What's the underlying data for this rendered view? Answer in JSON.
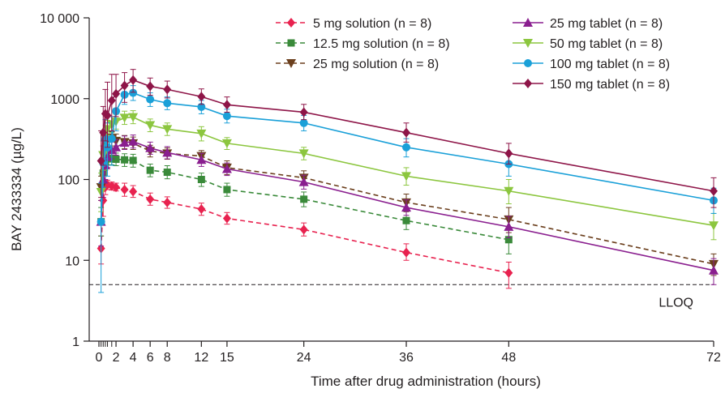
{
  "chart_data": {
    "type": "line",
    "xlabel": "Time after drug administration (hours)",
    "ylabel": "BAY 2433334 (µg/L)",
    "yscale": "log",
    "ylim": [
      1,
      10000
    ],
    "xlim": [
      0,
      72
    ],
    "x_ticks": [
      0,
      2,
      4,
      6,
      8,
      12,
      15,
      24,
      36,
      48,
      72
    ],
    "x_minor_ticks": [
      0.25,
      0.5,
      0.75,
      1,
      1.5
    ],
    "y_ticks": [
      {
        "value": 1,
        "label": "1"
      },
      {
        "value": 10,
        "label": "10"
      },
      {
        "value": 100,
        "label": "100"
      },
      {
        "value": 1000,
        "label": "1000"
      },
      {
        "value": 10000,
        "label": "10 000"
      }
    ],
    "reference_line": {
      "value": 5,
      "label": "LLOQ",
      "style": "dashed"
    },
    "legend_position": "top-right",
    "series": [
      {
        "name": "5 mg solution (n = 8)",
        "color": "#e8224f",
        "marker": "diamond",
        "dashed": true,
        "points": [
          {
            "x": 0.25,
            "y": 14,
            "lo": 9,
            "hi": 20
          },
          {
            "x": 0.5,
            "y": 55,
            "lo": 35,
            "hi": 75
          },
          {
            "x": 0.75,
            "y": 80,
            "lo": 65,
            "hi": 95
          },
          {
            "x": 1,
            "y": 86,
            "lo": 75,
            "hi": 98
          },
          {
            "x": 1.5,
            "y": 83,
            "lo": 74,
            "hi": 93
          },
          {
            "x": 2,
            "y": 80,
            "lo": 72,
            "hi": 90
          },
          {
            "x": 3,
            "y": 75,
            "lo": 62,
            "hi": 90
          },
          {
            "x": 4,
            "y": 71,
            "lo": 60,
            "hi": 84
          },
          {
            "x": 6,
            "y": 57,
            "lo": 48,
            "hi": 68
          },
          {
            "x": 8,
            "y": 52,
            "lo": 44,
            "hi": 61
          },
          {
            "x": 12,
            "y": 43,
            "lo": 36,
            "hi": 51
          },
          {
            "x": 15,
            "y": 33,
            "lo": 28,
            "hi": 39
          },
          {
            "x": 24,
            "y": 24,
            "lo": 20,
            "hi": 29
          },
          {
            "x": 36,
            "y": 12.5,
            "lo": 10,
            "hi": 16
          },
          {
            "x": 48,
            "y": 7,
            "lo": 4.5,
            "hi": 9.5
          }
        ]
      },
      {
        "name": "12.5 mg solution (n = 8)",
        "color": "#3a8a3a",
        "marker": "square",
        "dashed": true,
        "points": [
          {
            "x": 0.25,
            "y": 30,
            "lo": 20,
            "hi": 45
          },
          {
            "x": 0.5,
            "y": 120,
            "lo": 80,
            "hi": 160
          },
          {
            "x": 0.75,
            "y": 165,
            "lo": 130,
            "hi": 200
          },
          {
            "x": 1,
            "y": 180,
            "lo": 150,
            "hi": 215
          },
          {
            "x": 1.5,
            "y": 182,
            "lo": 152,
            "hi": 215
          },
          {
            "x": 2,
            "y": 178,
            "lo": 148,
            "hi": 212
          },
          {
            "x": 3,
            "y": 175,
            "lo": 145,
            "hi": 208
          },
          {
            "x": 4,
            "y": 172,
            "lo": 142,
            "hi": 205
          },
          {
            "x": 6,
            "y": 130,
            "lo": 108,
            "hi": 155
          },
          {
            "x": 8,
            "y": 123,
            "lo": 102,
            "hi": 148
          },
          {
            "x": 12,
            "y": 100,
            "lo": 82,
            "hi": 120
          },
          {
            "x": 15,
            "y": 75,
            "lo": 62,
            "hi": 90
          },
          {
            "x": 24,
            "y": 57,
            "lo": 46,
            "hi": 70
          },
          {
            "x": 36,
            "y": 31,
            "lo": 24,
            "hi": 40
          },
          {
            "x": 48,
            "y": 18,
            "lo": 12,
            "hi": 26
          }
        ]
      },
      {
        "name": "25 mg solution (n = 8)",
        "color": "#6b3f1d",
        "marker": "triangle-down",
        "dashed": true,
        "points": [
          {
            "x": 0.25,
            "y": 80,
            "lo": 55,
            "hi": 110
          },
          {
            "x": 0.5,
            "y": 200,
            "lo": 150,
            "hi": 260
          },
          {
            "x": 0.75,
            "y": 280,
            "lo": 220,
            "hi": 350
          },
          {
            "x": 1,
            "y": 330,
            "lo": 270,
            "hi": 400
          },
          {
            "x": 1.5,
            "y": 320,
            "lo": 260,
            "hi": 390
          },
          {
            "x": 2,
            "y": 300,
            "lo": 245,
            "hi": 365
          },
          {
            "x": 3,
            "y": 290,
            "lo": 240,
            "hi": 350
          },
          {
            "x": 4,
            "y": 280,
            "lo": 235,
            "hi": 335
          },
          {
            "x": 6,
            "y": 225,
            "lo": 190,
            "hi": 265
          },
          {
            "x": 8,
            "y": 210,
            "lo": 178,
            "hi": 245
          },
          {
            "x": 12,
            "y": 195,
            "lo": 165,
            "hi": 228
          },
          {
            "x": 15,
            "y": 140,
            "lo": 115,
            "hi": 170
          },
          {
            "x": 24,
            "y": 105,
            "lo": 85,
            "hi": 128
          },
          {
            "x": 36,
            "y": 52,
            "lo": 40,
            "hi": 66
          },
          {
            "x": 48,
            "y": 32,
            "lo": 22,
            "hi": 45
          },
          {
            "x": 72,
            "y": 9,
            "lo": 6.5,
            "hi": 12
          }
        ]
      },
      {
        "name": "25 mg tablet (n = 8)",
        "color": "#8a1f8f",
        "marker": "triangle-up",
        "dashed": false,
        "points": [
          {
            "x": 0.25,
            "y": 30,
            "lo": 15,
            "hi": 55
          },
          {
            "x": 0.5,
            "y": 100,
            "lo": 60,
            "hi": 150
          },
          {
            "x": 0.75,
            "y": 150,
            "lo": 100,
            "hi": 210
          },
          {
            "x": 1,
            "y": 190,
            "lo": 140,
            "hi": 250
          },
          {
            "x": 1.5,
            "y": 230,
            "lo": 180,
            "hi": 290
          },
          {
            "x": 2,
            "y": 250,
            "lo": 200,
            "hi": 310
          },
          {
            "x": 3,
            "y": 285,
            "lo": 235,
            "hi": 345
          },
          {
            "x": 4,
            "y": 295,
            "lo": 245,
            "hi": 355
          },
          {
            "x": 6,
            "y": 245,
            "lo": 205,
            "hi": 290
          },
          {
            "x": 8,
            "y": 215,
            "lo": 180,
            "hi": 255
          },
          {
            "x": 12,
            "y": 175,
            "lo": 145,
            "hi": 210
          },
          {
            "x": 15,
            "y": 135,
            "lo": 112,
            "hi": 160
          },
          {
            "x": 24,
            "y": 93,
            "lo": 76,
            "hi": 113
          },
          {
            "x": 36,
            "y": 45,
            "lo": 36,
            "hi": 56
          },
          {
            "x": 48,
            "y": 26,
            "lo": 19,
            "hi": 35
          },
          {
            "x": 72,
            "y": 7.5,
            "lo": 5,
            "hi": 10.5
          }
        ]
      },
      {
        "name": "50 mg tablet (n = 8)",
        "color": "#8cc63f",
        "marker": "triangle-down",
        "dashed": false,
        "points": [
          {
            "x": 0.25,
            "y": 70,
            "lo": 40,
            "hi": 120
          },
          {
            "x": 0.5,
            "y": 200,
            "lo": 130,
            "hi": 300
          },
          {
            "x": 0.75,
            "y": 320,
            "lo": 230,
            "hi": 430
          },
          {
            "x": 1,
            "y": 420,
            "lo": 320,
            "hi": 540
          },
          {
            "x": 1.5,
            "y": 480,
            "lo": 380,
            "hi": 600
          },
          {
            "x": 2,
            "y": 520,
            "lo": 420,
            "hi": 640
          },
          {
            "x": 3,
            "y": 580,
            "lo": 480,
            "hi": 700
          },
          {
            "x": 4,
            "y": 590,
            "lo": 490,
            "hi": 710
          },
          {
            "x": 6,
            "y": 470,
            "lo": 390,
            "hi": 560
          },
          {
            "x": 8,
            "y": 420,
            "lo": 350,
            "hi": 500
          },
          {
            "x": 12,
            "y": 370,
            "lo": 300,
            "hi": 450
          },
          {
            "x": 15,
            "y": 280,
            "lo": 235,
            "hi": 330
          },
          {
            "x": 24,
            "y": 210,
            "lo": 175,
            "hi": 250
          },
          {
            "x": 36,
            "y": 110,
            "lo": 85,
            "hi": 140
          },
          {
            "x": 48,
            "y": 72,
            "lo": 50,
            "hi": 100
          },
          {
            "x": 72,
            "y": 27,
            "lo": 18,
            "hi": 38
          }
        ]
      },
      {
        "name": "100 mg tablet (n = 8)",
        "color": "#1aa0d8",
        "marker": "circle",
        "dashed": false,
        "points": [
          {
            "x": 0.25,
            "y": 30,
            "lo": 4,
            "hi": 90
          },
          {
            "x": 0.5,
            "y": 160,
            "lo": 80,
            "hi": 300
          },
          {
            "x": 0.75,
            "y": 320,
            "lo": 180,
            "hi": 550
          },
          {
            "x": 1,
            "y": 250,
            "lo": 110,
            "hi": 500
          },
          {
            "x": 1.5,
            "y": 320,
            "lo": 150,
            "hi": 600
          },
          {
            "x": 2,
            "y": 700,
            "lo": 400,
            "hi": 1100
          },
          {
            "x": 3,
            "y": 1120,
            "lo": 850,
            "hi": 1450
          },
          {
            "x": 4,
            "y": 1180,
            "lo": 950,
            "hi": 1450
          },
          {
            "x": 6,
            "y": 980,
            "lo": 800,
            "hi": 1180
          },
          {
            "x": 8,
            "y": 880,
            "lo": 730,
            "hi": 1050
          },
          {
            "x": 12,
            "y": 790,
            "lo": 650,
            "hi": 950
          },
          {
            "x": 15,
            "y": 610,
            "lo": 500,
            "hi": 740
          },
          {
            "x": 24,
            "y": 500,
            "lo": 400,
            "hi": 620
          },
          {
            "x": 36,
            "y": 250,
            "lo": 190,
            "hi": 320
          },
          {
            "x": 48,
            "y": 155,
            "lo": 110,
            "hi": 210
          },
          {
            "x": 72,
            "y": 55,
            "lo": 38,
            "hi": 78
          }
        ]
      },
      {
        "name": "150 mg tablet (n = 8)",
        "color": "#8e1548",
        "marker": "diamond",
        "dashed": false,
        "points": [
          {
            "x": 0.25,
            "y": 170,
            "lo": 60,
            "hi": 400
          },
          {
            "x": 0.5,
            "y": 380,
            "lo": 150,
            "hi": 800
          },
          {
            "x": 0.75,
            "y": 650,
            "lo": 300,
            "hi": 1300
          },
          {
            "x": 1,
            "y": 620,
            "lo": 250,
            "hi": 1600
          },
          {
            "x": 1.5,
            "y": 950,
            "lo": 400,
            "hi": 2000
          },
          {
            "x": 2,
            "y": 1150,
            "lo": 600,
            "hi": 2000
          },
          {
            "x": 3,
            "y": 1450,
            "lo": 900,
            "hi": 2100
          },
          {
            "x": 4,
            "y": 1700,
            "lo": 1200,
            "hi": 2300
          },
          {
            "x": 6,
            "y": 1420,
            "lo": 1100,
            "hi": 1800
          },
          {
            "x": 8,
            "y": 1300,
            "lo": 1020,
            "hi": 1650
          },
          {
            "x": 12,
            "y": 1060,
            "lo": 850,
            "hi": 1320
          },
          {
            "x": 15,
            "y": 840,
            "lo": 680,
            "hi": 1050
          },
          {
            "x": 24,
            "y": 680,
            "lo": 550,
            "hi": 850
          },
          {
            "x": 36,
            "y": 380,
            "lo": 290,
            "hi": 500
          },
          {
            "x": 48,
            "y": 210,
            "lo": 155,
            "hi": 280
          },
          {
            "x": 72,
            "y": 72,
            "lo": 45,
            "hi": 105
          }
        ]
      }
    ]
  }
}
